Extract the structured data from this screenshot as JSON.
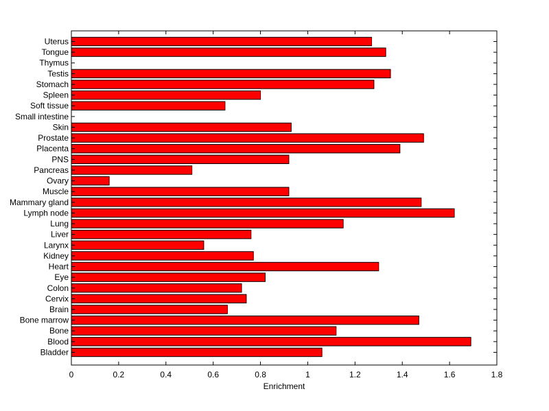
{
  "chart_data": {
    "type": "bar",
    "orientation": "horizontal",
    "title": "",
    "xlabel": "Enrichment",
    "ylabel": "",
    "xlim": [
      0,
      1.8
    ],
    "xticks": [
      0,
      0.2,
      0.4,
      0.6,
      0.8,
      1,
      1.2,
      1.4,
      1.6,
      1.8
    ],
    "xtick_labels": [
      "0",
      "0.2",
      "0.4",
      "0.6",
      "0.8",
      "1",
      "1.2",
      "1.4",
      "1.6",
      "1.8"
    ],
    "grid": false,
    "bar_color": "#ff0000",
    "edge_color": "#000000",
    "categories": [
      "Uterus",
      "Tongue",
      "Thymus",
      "Testis",
      "Stomach",
      "Spleen",
      "Soft tissue",
      "Small intestine",
      "Skin",
      "Prostate",
      "Placenta",
      "PNS",
      "Pancreas",
      "Ovary",
      "Muscle",
      "Mammary gland",
      "Lymph node",
      "Lung",
      "Liver",
      "Larynx",
      "Kidney",
      "Heart",
      "Eye",
      "Colon",
      "Cervix",
      "Brain",
      "Bone marrow",
      "Bone",
      "Blood",
      "Bladder"
    ],
    "values": [
      1.27,
      1.33,
      0,
      1.35,
      1.28,
      0.8,
      0.65,
      0,
      0.93,
      1.49,
      1.39,
      0.92,
      0.51,
      0.16,
      0.92,
      1.48,
      1.62,
      1.15,
      0.76,
      0.56,
      0.77,
      1.3,
      0.82,
      0.72,
      0.74,
      0.66,
      1.47,
      1.12,
      1.69,
      1.06
    ]
  }
}
